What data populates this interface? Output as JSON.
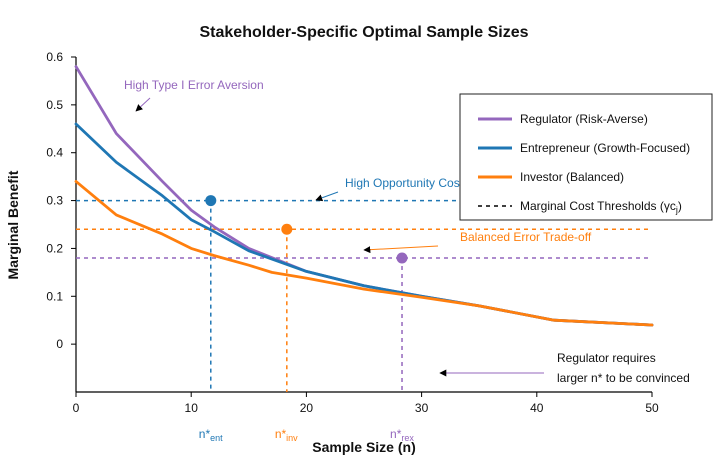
{
  "chart_data": {
    "type": "line",
    "title": "Stakeholder-Specific Optimal Sample Sizes",
    "xlabel": "Sample Size (n)",
    "ylabel": "Marginal Benefit",
    "xlim": [
      0,
      50
    ],
    "ylim": [
      -0.1,
      0.6
    ],
    "xticks": [
      0,
      10,
      20,
      30,
      40,
      50
    ],
    "yticks": [
      {
        "value": 0.6,
        "label": "0.6"
      },
      {
        "value": 0.5,
        "label": "0.5"
      },
      {
        "value": 0.4,
        "label": "0.4"
      },
      {
        "value": 0.3,
        "label": "0.3"
      },
      {
        "value": 0.2,
        "label": "0.2"
      },
      {
        "value": 0.1,
        "label": "0.1"
      },
      {
        "value": 0,
        "label": "0"
      }
    ],
    "grid": false,
    "legend_position": "right",
    "series": [
      {
        "name": "Regulator (Risk-Averse)",
        "color": "#9467bd",
        "x": [
          0,
          3.5,
          7.5,
          10,
          12,
          15,
          20,
          25,
          30,
          35,
          41.5,
          50
        ],
        "y": [
          0.58,
          0.44,
          0.34,
          0.28,
          0.245,
          0.2,
          0.152,
          0.122,
          0.1,
          0.08,
          0.05,
          0.04
        ]
      },
      {
        "name": "Entrepreneur (Growth-Focused)",
        "color": "#1f77b4",
        "x": [
          0,
          3.5,
          7.5,
          10,
          12,
          15,
          20,
          25,
          30,
          35,
          41.5,
          50
        ],
        "y": [
          0.46,
          0.38,
          0.31,
          0.26,
          0.235,
          0.195,
          0.152,
          0.122,
          0.1,
          0.08,
          0.05,
          0.04
        ]
      },
      {
        "name": "Investor (Balanced)",
        "color": "#ff7f0e",
        "x": [
          0,
          3.5,
          7.5,
          10,
          12,
          15,
          17,
          20,
          25,
          30,
          35,
          41.5,
          50
        ],
        "y": [
          0.34,
          0.27,
          0.23,
          0.2,
          0.185,
          0.165,
          0.15,
          0.138,
          0.115,
          0.098,
          0.08,
          0.05,
          0.04
        ]
      }
    ],
    "thresholds": [
      {
        "stakeholder": "Entrepreneur (Growth-Focused)",
        "value": 0.3,
        "color": "#1f77b4",
        "x_end": 50
      },
      {
        "stakeholder": "Investor (Balanced)",
        "value": 0.24,
        "color": "#ff7f0e",
        "x_end": 50
      },
      {
        "stakeholder": "Regulator (Risk-Averse)",
        "value": 0.18,
        "color": "#9467bd",
        "x_end": 50
      }
    ],
    "optimal_points": [
      {
        "x": 11.7,
        "y": 0.3,
        "color": "#1f77b4",
        "label_main": "n*",
        "label_sub": "ent"
      },
      {
        "x": 18.3,
        "y": 0.24,
        "color": "#ff7f0e",
        "label_main": "n*",
        "label_sub": "inv"
      },
      {
        "x": 28.3,
        "y": 0.18,
        "color": "#9467bd",
        "label_main": "n*",
        "label_sub": "rex"
      }
    ],
    "legend_threshold_label": "Marginal Cost Thresholds (γc",
    "legend_threshold_sub": "j",
    "legend_threshold_close": ")",
    "annotations": [
      {
        "text": "High Type I Error Aversion",
        "color": "#9467bd"
      },
      {
        "text": "High Opportunity Cost",
        "color": "#1f77b4"
      },
      {
        "text": "Balanced Error Trade-off",
        "color": "#ff7f0e"
      },
      {
        "text": "Regulator requires",
        "color": "#111111"
      },
      {
        "text": "larger n* to be convinced",
        "color": "#111111"
      }
    ]
  }
}
